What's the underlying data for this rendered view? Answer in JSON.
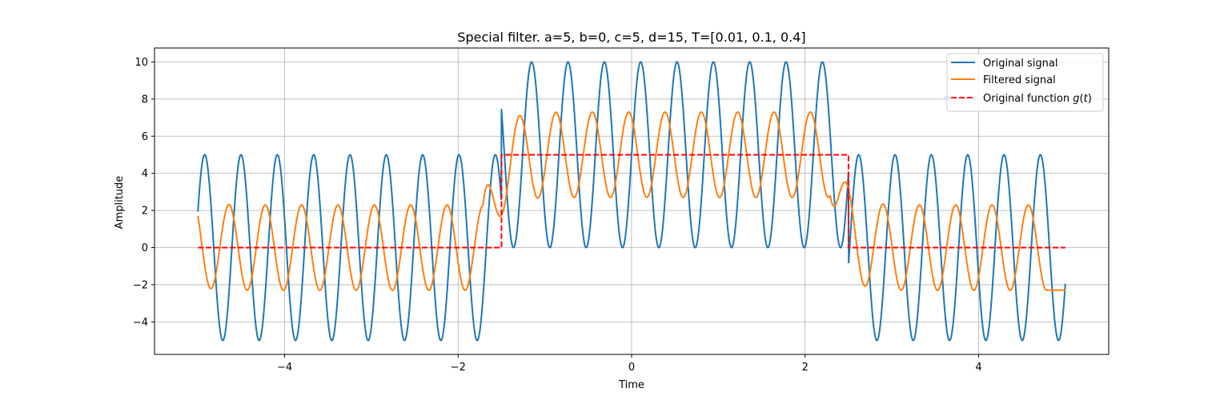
{
  "chart_data": {
    "type": "line",
    "title": "Special filter. a=5, b=0, c=5, d=15, T=[0.01, 0.1, 0.4]",
    "xlabel": "Time",
    "ylabel": "Amplitude",
    "xlim": [
      -5.5,
      5.5
    ],
    "ylim": [
      -5.75,
      10.75
    ],
    "grid": true,
    "legend_position": "top-right",
    "xticks": [
      -4,
      -2,
      0,
      2,
      4
    ],
    "yticks": [
      -4,
      -2,
      0,
      2,
      4,
      6,
      8,
      10
    ],
    "xtick_labels": [
      "−4",
      "−2",
      "0",
      "2",
      "4"
    ],
    "ytick_labels": [
      "−4",
      "−2",
      "0",
      "2",
      "4",
      "6",
      "8",
      "10"
    ],
    "series": [
      {
        "name": "Original signal",
        "color": "#1f77b4",
        "style": "solid",
        "formula": "g(t) + 5*sin(15*t)",
        "x_range": [
          -5,
          5
        ]
      },
      {
        "name": "Filtered signal",
        "color": "#ff7f0e",
        "style": "solid",
        "x_range": [
          -5,
          5
        ]
      },
      {
        "name": "Original function $g(t)$",
        "color": "#ff0000",
        "style": "dashed",
        "x": [
          -5,
          -1.5,
          -1.5,
          2.5,
          2.5,
          5
        ],
        "y": [
          0,
          0,
          5,
          5,
          0,
          0
        ]
      }
    ],
    "parameters": {
      "a": 5,
      "b": 0,
      "c": 5,
      "d": 15,
      "T": [
        0.01,
        0.1,
        0.4
      ]
    },
    "step_interval": [
      -1.5,
      2.5
    ]
  }
}
